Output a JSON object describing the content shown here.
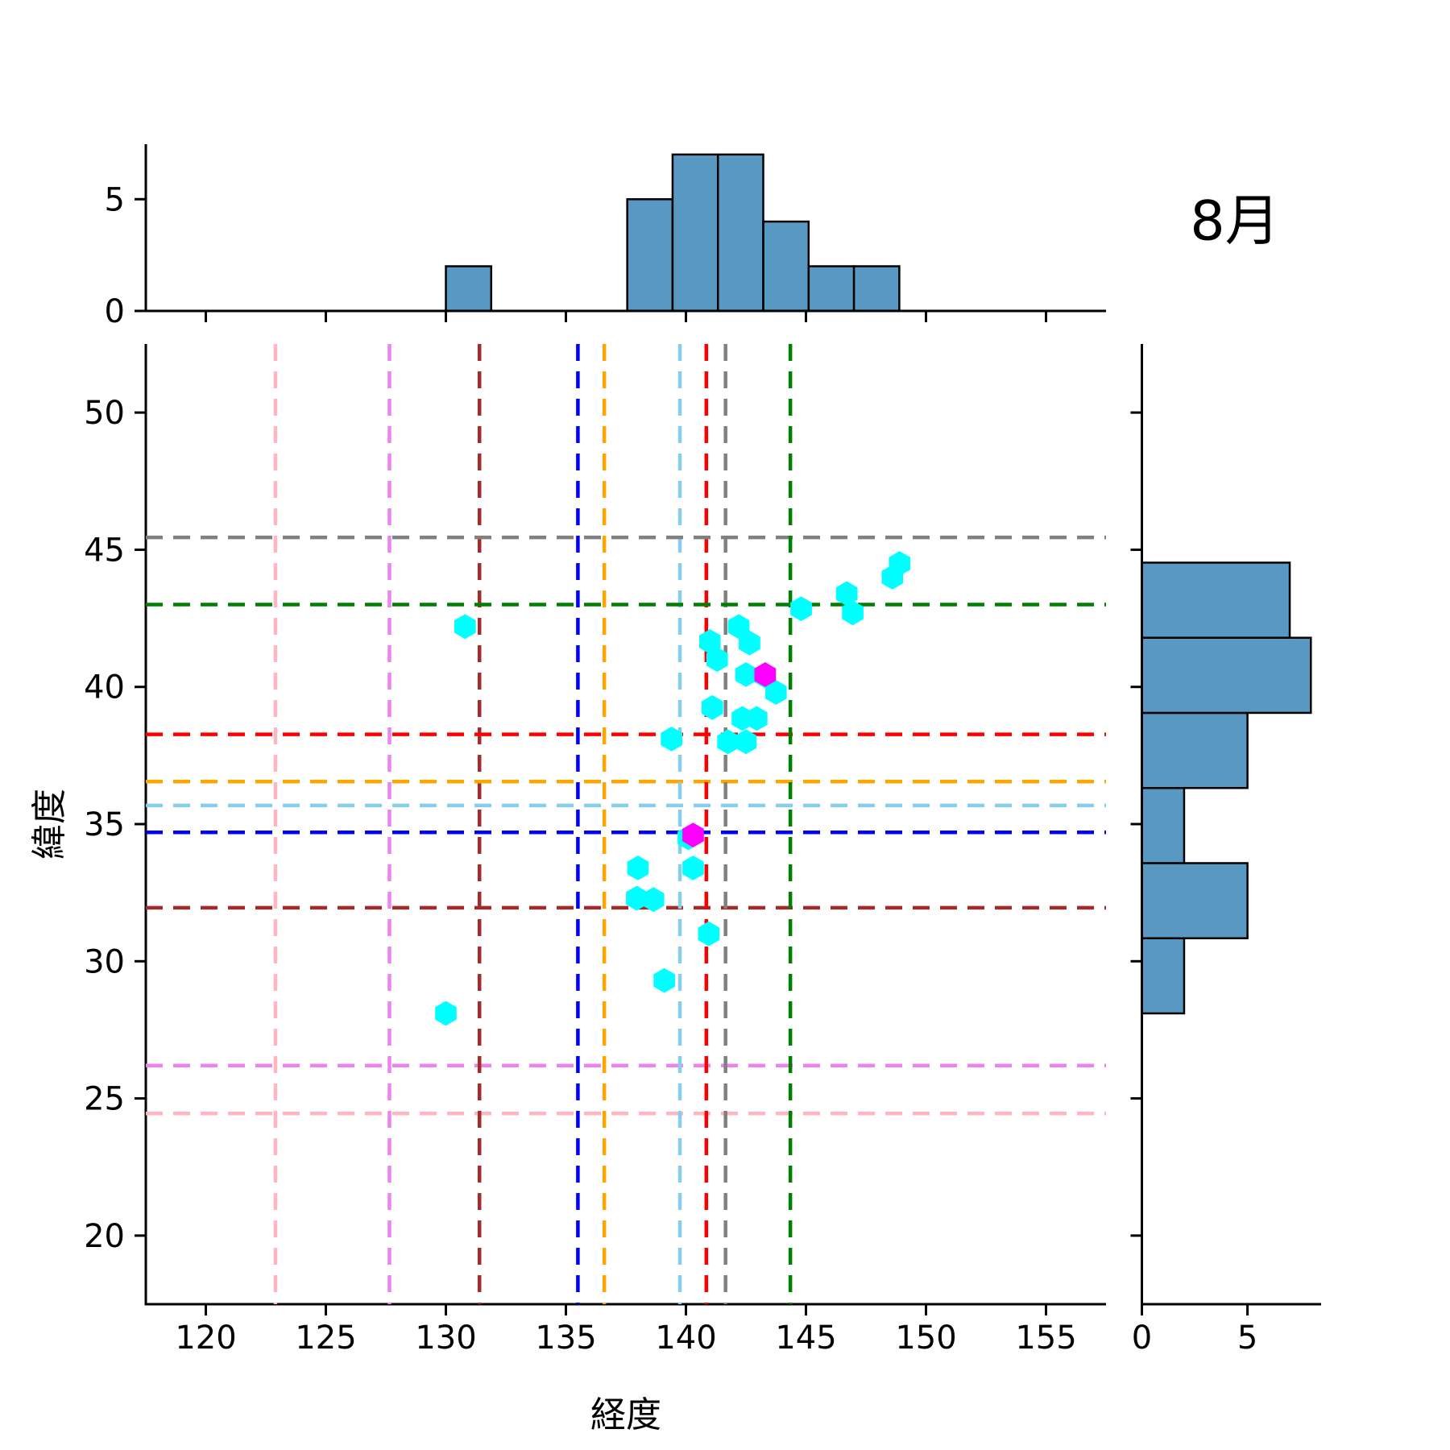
{
  "title": "8月",
  "axes": {
    "xlabel": "経度",
    "ylabel": "緯度"
  },
  "chart_data": {
    "type": "scatter",
    "subtype": "jointplot with marginal histograms",
    "title": "8月",
    "xlabel": "経度",
    "ylabel": "緯度",
    "xlim": [
      117.5,
      157.5
    ],
    "ylim": [
      17.5,
      52.5
    ],
    "x_ticks": [
      120,
      125,
      130,
      135,
      140,
      145,
      150,
      155
    ],
    "y_ticks": [
      20,
      25,
      30,
      35,
      40,
      45,
      50
    ],
    "marginal_count_ticks": [
      0,
      5
    ],
    "grid": false,
    "colors": {
      "bar_fill": "#5A98C4",
      "bar_edge": "#000000",
      "point": "#00FFFF",
      "highlight_point": "#FF00FF",
      "axis": "#000000"
    },
    "top_hist": {
      "bin_start": 130.0,
      "bin_width": 1.8889,
      "counts": [
        2,
        0,
        0,
        0,
        5,
        7,
        7,
        4,
        2,
        2
      ],
      "count_max": 7.46
    },
    "right_hist": {
      "bin_start": 28.1,
      "bin_width": 2.7383,
      "counts": [
        2,
        5,
        2,
        5,
        8,
        7
      ],
      "count_max": 8.5
    },
    "series": [
      {
        "name": "observations",
        "marker": "hexagon",
        "color": "#00FFFF",
        "points": [
          [
            130.0,
            28.1
          ],
          [
            130.8,
            42.2
          ],
          [
            139.1,
            29.3
          ],
          [
            140.95,
            31.0
          ],
          [
            137.95,
            32.3
          ],
          [
            138.65,
            32.25
          ],
          [
            138.0,
            33.4
          ],
          [
            140.3,
            33.4
          ],
          [
            140.1,
            34.5
          ],
          [
            139.4,
            38.1
          ],
          [
            141.1,
            39.25
          ],
          [
            141.0,
            41.65
          ],
          [
            142.2,
            42.2
          ],
          [
            141.3,
            41.0
          ],
          [
            142.65,
            41.6
          ],
          [
            142.5,
            40.45
          ],
          [
            143.3,
            40.4
          ],
          [
            143.75,
            39.8
          ],
          [
            142.35,
            38.85
          ],
          [
            142.95,
            38.85
          ],
          [
            141.75,
            38.0
          ],
          [
            142.5,
            38.0
          ],
          [
            144.8,
            42.85
          ],
          [
            146.7,
            43.4
          ],
          [
            146.95,
            42.7
          ],
          [
            148.9,
            44.5
          ],
          [
            148.6,
            44.0
          ]
        ]
      },
      {
        "name": "highlighted",
        "marker": "hexagon",
        "color": "#FF00FF",
        "points": [
          [
            140.3,
            34.6
          ],
          [
            143.3,
            40.45
          ]
        ]
      }
    ],
    "crosshairs": [
      {
        "color": "#FFB6C1",
        "lon": 122.9,
        "lat": 24.45
      },
      {
        "color": "#EE82EE",
        "lon": 127.65,
        "lat": 26.2
      },
      {
        "color": "#A52A2A",
        "lon": 131.4,
        "lat": 31.95
      },
      {
        "color": "#0000FF",
        "lon": 135.5,
        "lat": 34.7
      },
      {
        "color": "#FFA500",
        "lon": 136.6,
        "lat": 36.55
      },
      {
        "color": "#87CEEB",
        "lon": 139.75,
        "lat": 35.68
      },
      {
        "color": "#FF0000",
        "lon": 140.85,
        "lat": 38.27
      },
      {
        "color": "#808080",
        "lon": 141.65,
        "lat": 45.45
      },
      {
        "color": "#008000",
        "lon": 144.35,
        "lat": 43.0
      }
    ]
  }
}
